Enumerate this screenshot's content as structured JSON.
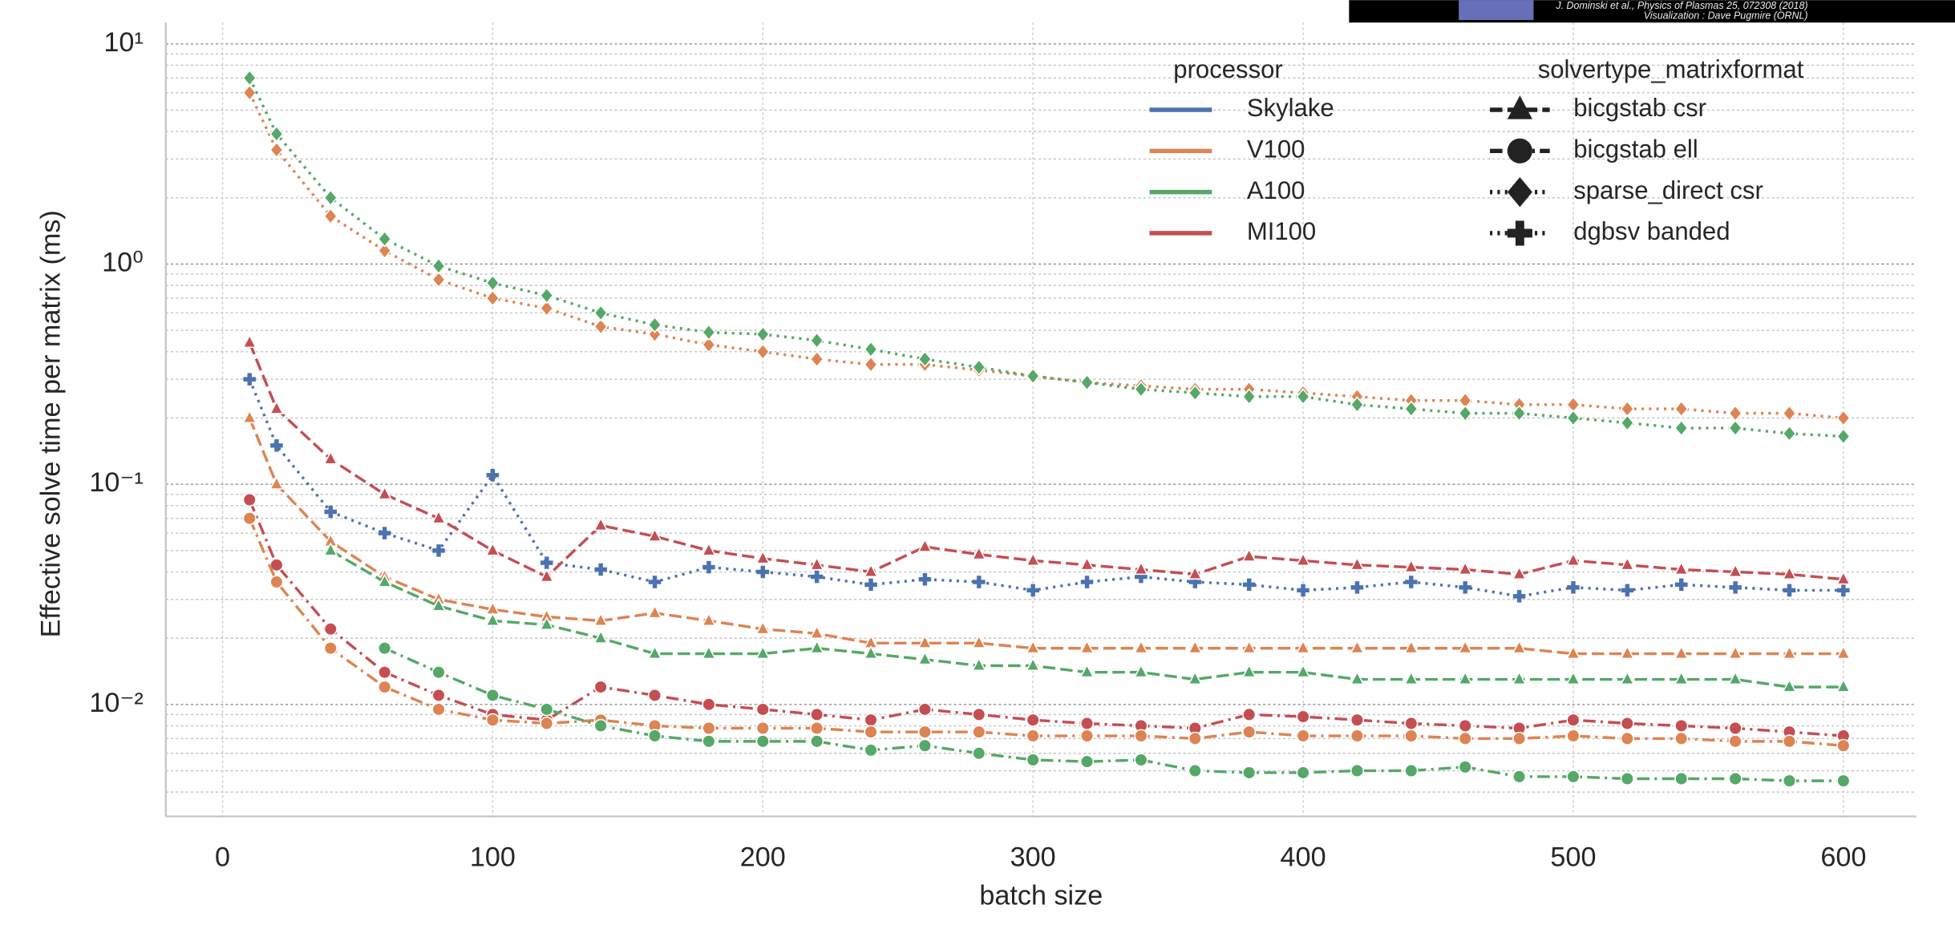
{
  "chart_data": {
    "type": "line",
    "x_label": "batch size",
    "y_label": "Effective solve time per matrix (ms)",
    "annotations": [
      "J. Dominski et al., Physics of Plasmas 25, 072308 (2018)",
      "Visualization : Dave Pugmire (ORNL)"
    ],
    "x": [
      10,
      20,
      40,
      60,
      80,
      100,
      120,
      140,
      160,
      180,
      200,
      220,
      240,
      260,
      280,
      300,
      320,
      340,
      360,
      380,
      400,
      420,
      440,
      460,
      480,
      500,
      520,
      540,
      560,
      580,
      600
    ],
    "xlim": [
      -21,
      627
    ],
    "xticks": [
      0,
      100,
      200,
      300,
      400,
      500,
      600
    ],
    "ylim": [
      0.0031,
      12.5
    ],
    "yscale": "log",
    "yticks": [
      {
        "value": 10,
        "label": "10¹"
      },
      {
        "value": 1,
        "label": "10⁰"
      },
      {
        "value": 0.1,
        "label": "10⁻¹"
      },
      {
        "value": 0.01,
        "label": "10⁻²"
      }
    ],
    "grid": true,
    "minor_grid": true,
    "legends": [
      {
        "title": "processor",
        "items": [
          {
            "name": "Skylake",
            "color": "#4c72b0"
          },
          {
            "name": "V100",
            "color": "#dd8452"
          },
          {
            "name": "A100",
            "color": "#55a868"
          },
          {
            "name": "MI100",
            "color": "#c44e52"
          }
        ]
      },
      {
        "title": "solvertype_matrixformat",
        "items": [
          {
            "name": "bicgstab csr",
            "marker": "triangle",
            "dash": "dashed"
          },
          {
            "name": "bicgstab ell",
            "marker": "circle",
            "dash": "dashdot"
          },
          {
            "name": "sparse_direct csr",
            "marker": "diamond",
            "dash": "dotted"
          },
          {
            "name": "dgbsv banded",
            "marker": "plus",
            "dash": "dotted"
          }
        ]
      }
    ],
    "series": [
      {
        "processor": "V100",
        "solver": "sparse_direct csr",
        "values": [
          6.0,
          3.3,
          1.65,
          1.15,
          0.85,
          0.7,
          0.63,
          0.52,
          0.48,
          0.43,
          0.4,
          0.37,
          0.35,
          0.35,
          0.33,
          0.31,
          0.29,
          0.28,
          0.27,
          0.27,
          0.26,
          0.25,
          0.24,
          0.24,
          0.23,
          0.23,
          0.22,
          0.22,
          0.21,
          0.21,
          0.2
        ]
      },
      {
        "processor": "A100",
        "solver": "sparse_direct csr",
        "values": [
          7.0,
          3.9,
          2.0,
          1.3,
          0.98,
          0.82,
          0.72,
          0.6,
          0.53,
          0.49,
          0.48,
          0.45,
          0.41,
          0.37,
          0.34,
          0.31,
          0.29,
          0.27,
          0.26,
          0.25,
          0.25,
          0.23,
          0.22,
          0.21,
          0.21,
          0.2,
          0.19,
          0.18,
          0.18,
          0.17,
          0.165
        ]
      },
      {
        "processor": "Skylake",
        "solver": "dgbsv banded",
        "values": [
          0.3,
          0.15,
          0.075,
          0.06,
          0.05,
          0.11,
          0.044,
          0.041,
          0.036,
          0.042,
          0.04,
          0.038,
          0.035,
          0.037,
          0.036,
          0.033,
          0.036,
          0.038,
          0.036,
          0.035,
          0.033,
          0.034,
          0.036,
          0.034,
          0.031,
          0.034,
          0.033,
          0.035,
          0.034,
          0.033,
          0.033
        ]
      },
      {
        "processor": "MI100",
        "solver": "bicgstab csr",
        "values": [
          0.44,
          0.22,
          0.13,
          0.09,
          0.07,
          0.05,
          0.038,
          0.065,
          0.058,
          0.05,
          0.046,
          0.043,
          0.04,
          0.052,
          0.048,
          0.045,
          0.043,
          0.041,
          0.039,
          0.047,
          0.045,
          0.043,
          0.042,
          0.041,
          0.039,
          0.045,
          0.043,
          0.041,
          0.04,
          0.039,
          0.037
        ]
      },
      {
        "processor": "V100",
        "solver": "bicgstab csr",
        "values": [
          0.2,
          0.1,
          0.055,
          0.038,
          0.03,
          0.027,
          0.025,
          0.024,
          0.026,
          0.024,
          0.022,
          0.021,
          0.019,
          0.019,
          0.019,
          0.018,
          0.018,
          0.018,
          0.018,
          0.018,
          0.018,
          0.018,
          0.018,
          0.018,
          0.018,
          0.017,
          0.017,
          0.017,
          0.017,
          0.017,
          0.017
        ]
      },
      {
        "processor": "A100",
        "solver": "bicgstab csr",
        "values": [
          null,
          null,
          0.05,
          0.036,
          0.028,
          0.024,
          0.023,
          0.02,
          0.017,
          0.017,
          0.017,
          0.018,
          0.017,
          0.016,
          0.015,
          0.015,
          0.014,
          0.014,
          0.013,
          0.014,
          0.014,
          0.013,
          0.013,
          0.013,
          0.013,
          0.013,
          0.013,
          0.013,
          0.013,
          0.012,
          0.012
        ]
      },
      {
        "processor": "MI100",
        "solver": "bicgstab ell",
        "values": [
          0.085,
          0.043,
          0.022,
          0.014,
          0.011,
          0.009,
          0.0085,
          0.012,
          0.011,
          0.01,
          0.0095,
          0.009,
          0.0085,
          0.0095,
          0.009,
          0.0085,
          0.0082,
          0.008,
          0.0078,
          0.009,
          0.0088,
          0.0085,
          0.0082,
          0.008,
          0.0078,
          0.0085,
          0.0082,
          0.008,
          0.0078,
          0.0075,
          0.0072
        ]
      },
      {
        "processor": "V100",
        "solver": "bicgstab ell",
        "values": [
          0.07,
          0.036,
          0.018,
          0.012,
          0.0095,
          0.0085,
          0.0082,
          0.0085,
          0.008,
          0.0078,
          0.0078,
          0.0078,
          0.0075,
          0.0075,
          0.0075,
          0.0072,
          0.0072,
          0.0072,
          0.007,
          0.0075,
          0.0072,
          0.0072,
          0.0072,
          0.007,
          0.007,
          0.0072,
          0.007,
          0.007,
          0.0068,
          0.0068,
          0.0065
        ]
      },
      {
        "processor": "A100",
        "solver": "bicgstab ell",
        "values": [
          null,
          null,
          null,
          0.018,
          0.014,
          0.011,
          0.0095,
          0.008,
          0.0072,
          0.0068,
          0.0068,
          0.0068,
          0.0062,
          0.0065,
          0.006,
          0.0056,
          0.0055,
          0.0056,
          0.005,
          0.0049,
          0.0049,
          0.005,
          0.005,
          0.0052,
          0.0047,
          0.0047,
          0.0046,
          0.0046,
          0.0046,
          0.0045,
          0.0045
        ]
      }
    ]
  }
}
